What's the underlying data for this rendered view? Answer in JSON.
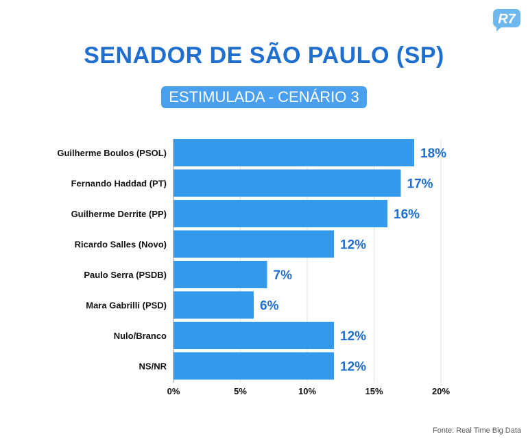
{
  "logo": {
    "text": "R7",
    "color": "#6fb8ee"
  },
  "title": "SENADOR DE SÃO PAULO (SP)",
  "subtitle": "ESTIMULADA - CENÁRIO 3",
  "source": "Fonte: Real Time Big Data",
  "colors": {
    "bar": "#3399ea",
    "title": "#1f6fd1",
    "value_label": "#1f6fd1",
    "grid": "#dcdcdc"
  },
  "chart_data": {
    "type": "bar",
    "orientation": "horizontal",
    "categories": [
      "Guilherme Boulos (PSOL)",
      "Fernando Haddad (PT)",
      "Guilherme Derrite (PP)",
      "Ricardo Salles (Novo)",
      "Paulo Serra (PSDB)",
      "Mara Gabrilli (PSD)",
      "Nulo/Branco",
      "NS/NR"
    ],
    "values": [
      18,
      17,
      16,
      12,
      7,
      6,
      12,
      12
    ],
    "value_labels": [
      "18%",
      "17%",
      "16%",
      "12%",
      "7%",
      "6%",
      "12%",
      "12%"
    ],
    "xlim": [
      0,
      20
    ],
    "xticks": [
      0,
      5,
      10,
      15,
      20
    ],
    "xtick_labels": [
      "0%",
      "5%",
      "10%",
      "15%",
      "20%"
    ],
    "grid": true,
    "legend": "none"
  }
}
